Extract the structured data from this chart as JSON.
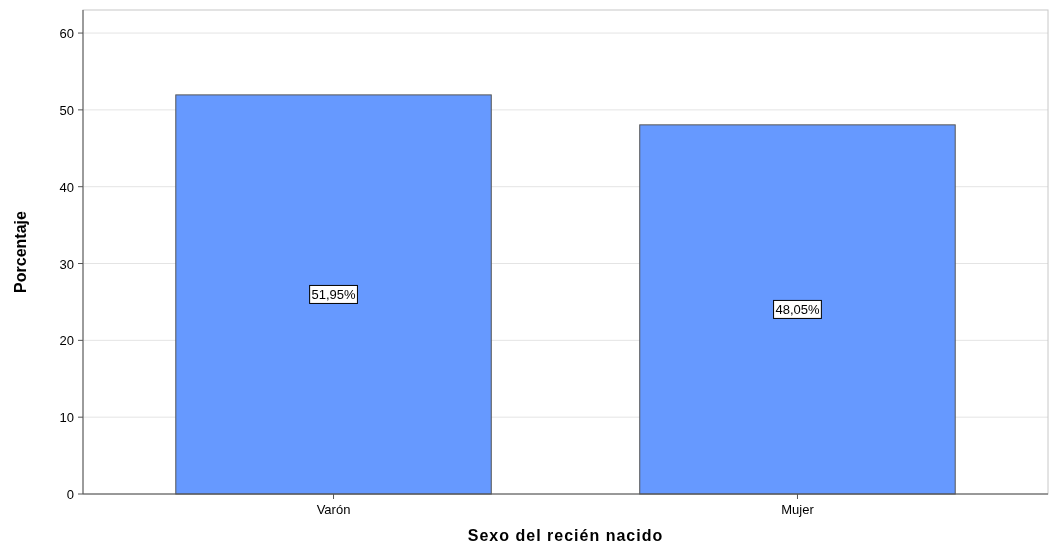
{
  "chart_data": {
    "type": "bar",
    "xlabel": "Sexo del recién nacido",
    "ylabel": "Porcentaje",
    "categories": [
      "Varón",
      "Mujer"
    ],
    "values": [
      51.95,
      48.05
    ],
    "value_labels": [
      "51,95%",
      "48,05%"
    ],
    "color": "#6699ff",
    "ylim": [
      0,
      63
    ],
    "yticks": [
      0,
      10,
      20,
      30,
      40,
      50,
      60
    ],
    "grid": "y"
  }
}
